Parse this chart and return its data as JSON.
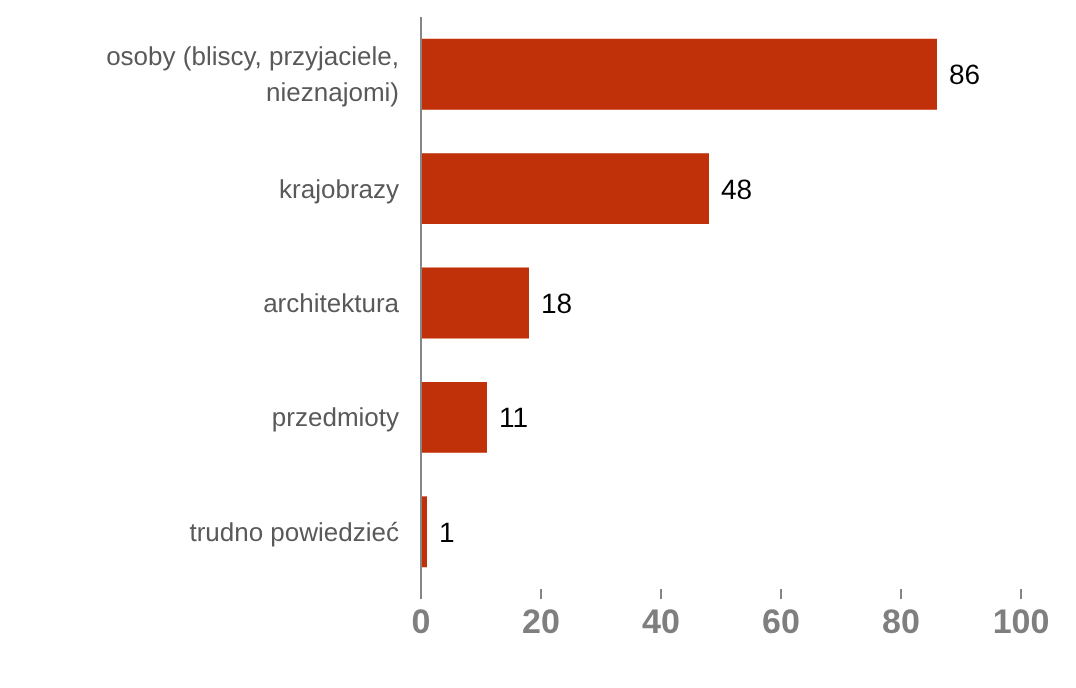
{
  "chart_data": {
    "type": "bar",
    "orientation": "horizontal",
    "categories": [
      "osoby (bliscy, przyjaciele, nieznajomi)",
      "krajobrazy",
      "architektura",
      "przedmioty",
      "trudno powiedzieć"
    ],
    "values": [
      86,
      48,
      18,
      11,
      1
    ],
    "color": "#c0310a",
    "data_labels": true,
    "xlim": [
      0,
      100
    ],
    "xticks": [
      0,
      20,
      40,
      60,
      80,
      100
    ],
    "grid": false
  }
}
